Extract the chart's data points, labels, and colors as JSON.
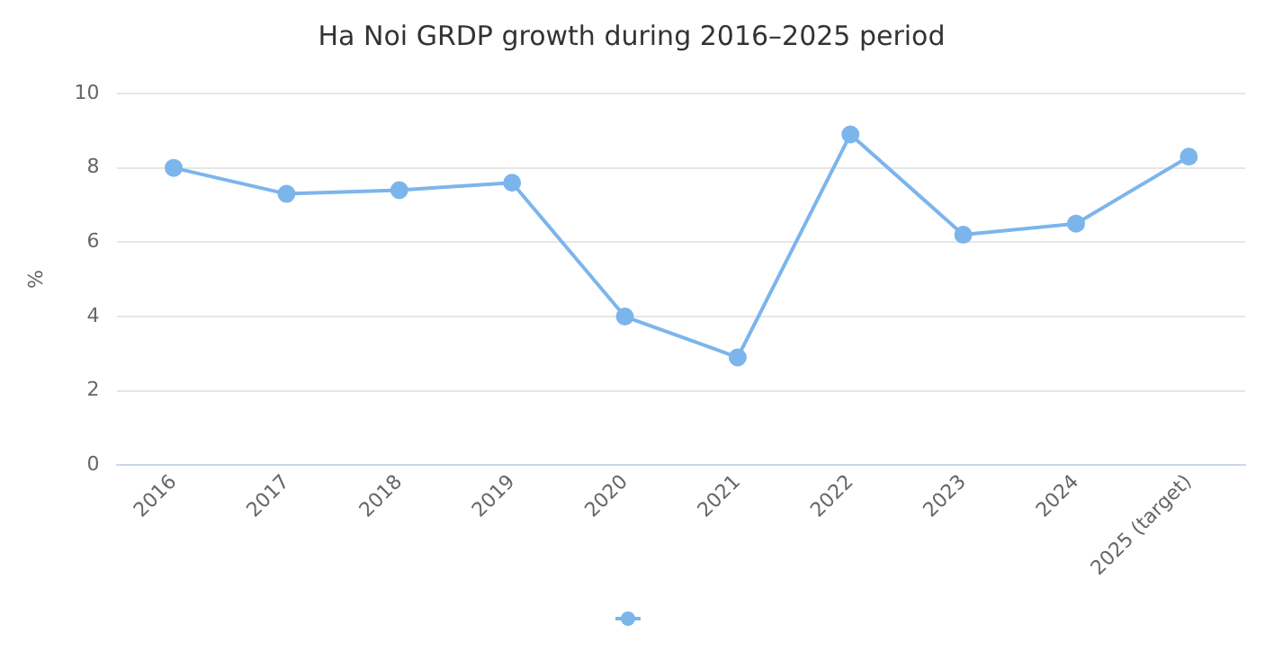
{
  "chart_data": {
    "type": "line",
    "title": "Ha Noi GRDP growth during 2016–2025 period",
    "ylabel": "%",
    "categories": [
      "2016",
      "2017",
      "2018",
      "2019",
      "2020",
      "2021",
      "2022",
      "2023",
      "2024",
      "2025 (target)"
    ],
    "series": [
      {
        "color": "#7cb5ec",
        "values": [
          8.0,
          7.3,
          7.4,
          7.6,
          4.0,
          2.9,
          8.9,
          6.2,
          6.5,
          8.3
        ]
      }
    ],
    "ylim": [
      0,
      10
    ],
    "yticks": [
      0,
      2,
      4,
      6,
      8,
      10
    ],
    "grid": "y",
    "marker": "circle",
    "line_style": "solid"
  }
}
